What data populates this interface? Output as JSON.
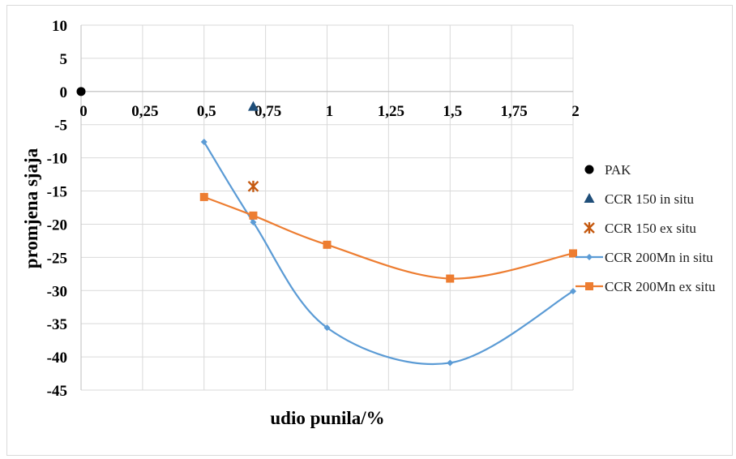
{
  "chart_data": {
    "type": "scatter",
    "title": "",
    "xlabel": "udio punila/%",
    "ylabel": "promjena sjaja",
    "xlim": [
      0,
      2
    ],
    "ylim": [
      -45,
      10
    ],
    "grid": true,
    "legend_position": "right",
    "x_ticks": [
      0,
      0.25,
      0.5,
      0.75,
      1,
      1.25,
      1.5,
      1.75,
      2
    ],
    "x_tick_labels": [
      "0",
      "0,25",
      "0,5",
      "0,75",
      "1",
      "1,25",
      "1,5",
      "1,75",
      "2"
    ],
    "y_ticks": [
      10,
      5,
      0,
      -5,
      -10,
      -15,
      -20,
      -25,
      -30,
      -35,
      -40,
      -45
    ],
    "y_tick_labels": [
      "10",
      "5",
      "0",
      "-5",
      "-10",
      "-15",
      "-20",
      "-25",
      "-30",
      "-35",
      "-40",
      "-45"
    ],
    "series": [
      {
        "name": "PAK",
        "marker": "circle",
        "smooth_line": false,
        "color": "#000000",
        "points": [
          [
            0,
            0
          ]
        ]
      },
      {
        "name": "CCR 150 in situ",
        "marker": "triangle",
        "smooth_line": false,
        "color": "#1f4e79",
        "points": [
          [
            0.7,
            -2.3
          ]
        ]
      },
      {
        "name": "CCR 150 ex situ",
        "marker": "star",
        "smooth_line": false,
        "color": "#c55a11",
        "points": [
          [
            0.7,
            -14.3
          ]
        ]
      },
      {
        "name": "CCR 200Mn in situ",
        "marker": "diamond",
        "smooth_line": true,
        "color": "#5b9bd5",
        "points": [
          [
            0.5,
            -7.6
          ],
          [
            0.7,
            -19.7
          ],
          [
            1,
            -35.6
          ],
          [
            1.5,
            -40.9
          ],
          [
            2,
            -30.1
          ]
        ]
      },
      {
        "name": "CCR 200Mn ex situ",
        "marker": "square",
        "smooth_line": true,
        "color": "#ed7d31",
        "points": [
          [
            0.5,
            -15.9
          ],
          [
            0.7,
            -18.7
          ],
          [
            1,
            -23.1
          ],
          [
            1.5,
            -28.2
          ],
          [
            2,
            -24.4
          ]
        ]
      }
    ]
  }
}
